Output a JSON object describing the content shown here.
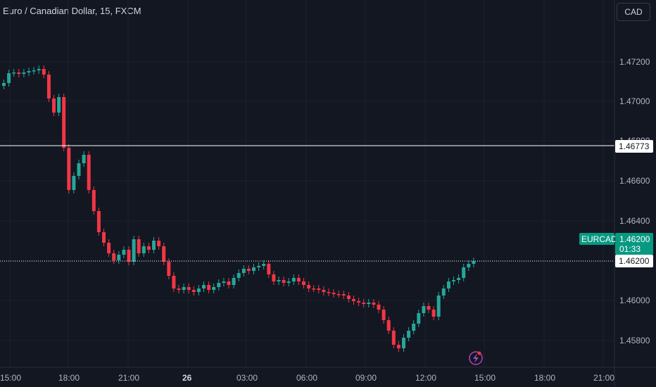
{
  "header": {
    "symbol_title": "Euro / Canadian Dollar, 15, FXCM",
    "currency_button": "CAD"
  },
  "price_axis": {
    "ticks": [
      "1.47200",
      "1.47000",
      "1.46800",
      "1.46600",
      "1.46400",
      "1.46000",
      "1.45800"
    ]
  },
  "time_axis": {
    "ticks": [
      "15:00",
      "18:00",
      "21:00",
      "26",
      "03:00",
      "06:00",
      "09:00",
      "12:00",
      "15:00",
      "18:00",
      "21:00"
    ]
  },
  "horizontal_line": {
    "label": "1.46773"
  },
  "price_line": {
    "label": "1.46200"
  },
  "symbol_tag": {
    "symbol": "EURCAD",
    "price": "1.46200",
    "countdown": "01:33"
  },
  "colors": {
    "background": "#131722",
    "up": "#26a69a",
    "down": "#f23645",
    "grid": "#1e222d",
    "tag_green": "#089981",
    "lightning": "#ab47bc"
  },
  "icons": {
    "lightning": "lightning-icon"
  }
}
